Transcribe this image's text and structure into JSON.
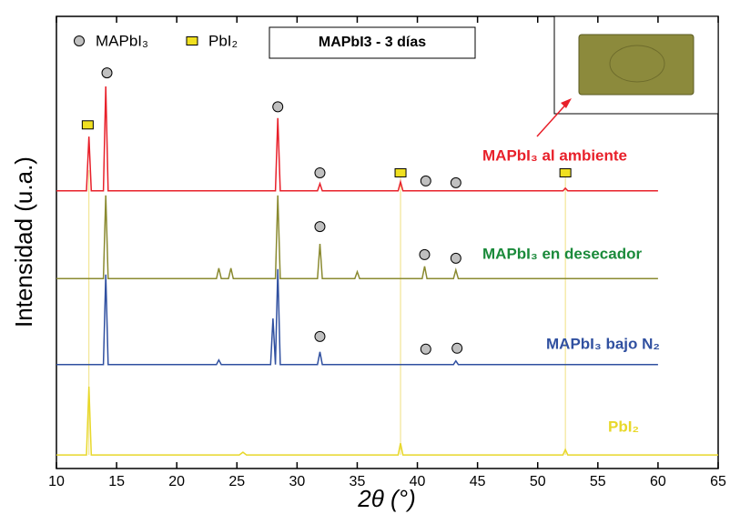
{
  "chart_data": {
    "type": "line",
    "title": "MAPbI3 -  3 días",
    "xlabel": "2θ (°)",
    "ylabel": "Intensidad (u.a.)",
    "xlim": [
      10,
      65
    ],
    "xticks": [
      10,
      15,
      20,
      25,
      30,
      35,
      40,
      45,
      50,
      55,
      60,
      65
    ],
    "ylim": [
      0,
      100
    ],
    "legend": [
      {
        "name": "MAPbI₃",
        "shape": "circle",
        "color": "#c0c0c0"
      },
      {
        "name": "PbI₂",
        "shape": "square",
        "color": "#f0e020"
      }
    ],
    "series": [
      {
        "name": "MAPbI₃ al ambiente",
        "color": "#e8202a",
        "label_color": "#e8202a",
        "x": [
          10,
          12.5,
          12.7,
          12.9,
          13.9,
          14.1,
          14.3,
          28.2,
          28.4,
          28.6,
          31.7,
          31.9,
          32.1,
          38.4,
          38.6,
          38.8,
          52.1,
          52.3,
          52.5,
          60
        ],
        "values": [
          61.4,
          61.4,
          73.4,
          61.4,
          61.4,
          84.5,
          61.4,
          61.4,
          77.5,
          61.4,
          61.4,
          63,
          61.4,
          61.4,
          63.4,
          61.4,
          61.4,
          62,
          61.4,
          61.4
        ]
      },
      {
        "name": "MAPbI₃ en desecador",
        "color": "#8a8a30",
        "label_color": "#1a8a3a",
        "x": [
          10,
          13.9,
          14.1,
          14.3,
          23.3,
          23.5,
          23.7,
          24.3,
          24.5,
          24.7,
          28.2,
          28.4,
          28.6,
          31.7,
          31.9,
          32.1,
          34.8,
          35,
          35.2,
          40.4,
          40.6,
          40.8,
          43,
          43.2,
          43.4,
          60
        ],
        "values": [
          42,
          42,
          60.4,
          42,
          42,
          44.3,
          42,
          42,
          44.3,
          42,
          42,
          60.4,
          42,
          42,
          49.7,
          42,
          42,
          43.5,
          42,
          42,
          44.7,
          42,
          42,
          43.9,
          42,
          42
        ]
      },
      {
        "name": "MAPbI₃ bajo N₂",
        "color": "#3050a0",
        "label_color": "#3050a0",
        "x": [
          10,
          13.9,
          14.1,
          14.3,
          23.3,
          23.5,
          23.7,
          27.8,
          28,
          28.2,
          28.4,
          28.6,
          31.7,
          31.9,
          32.1,
          43,
          43.2,
          43.4,
          60
        ],
        "values": [
          23,
          23,
          42.9,
          23,
          23,
          24,
          23,
          23,
          33.2,
          23,
          44.1,
          23,
          23,
          25.8,
          23,
          23,
          23.8,
          23,
          23
        ]
      },
      {
        "name": "PbI₂",
        "color": "#e8d82a",
        "label_color": "#e8d82a",
        "x": [
          10,
          12.5,
          12.7,
          12.9,
          25.2,
          25.5,
          25.8,
          38.4,
          38.6,
          38.8,
          52.1,
          52.3,
          52.5,
          65
        ],
        "values": [
          3,
          3,
          18.1,
          3,
          3,
          3.6,
          3,
          3,
          5.6,
          3,
          3,
          4.2,
          3,
          3
        ]
      }
    ],
    "vlines": [
      12.7,
      38.6,
      52.3
    ],
    "vline_color": "#f0e080",
    "peak_markers": [
      {
        "x": 12.6,
        "y": 76,
        "shape": "square"
      },
      {
        "x": 14.2,
        "y": 87.5,
        "shape": "circle"
      },
      {
        "x": 28.4,
        "y": 80,
        "shape": "circle"
      },
      {
        "x": 31.9,
        "y": 65.4,
        "shape": "circle"
      },
      {
        "x": 38.6,
        "y": 65.4,
        "shape": "square"
      },
      {
        "x": 40.7,
        "y": 63.6,
        "shape": "circle"
      },
      {
        "x": 43.2,
        "y": 63.2,
        "shape": "circle"
      },
      {
        "x": 52.3,
        "y": 65.4,
        "shape": "square"
      },
      {
        "x": 31.9,
        "y": 53.5,
        "shape": "circle"
      },
      {
        "x": 40.6,
        "y": 47.3,
        "shape": "circle"
      },
      {
        "x": 43.2,
        "y": 46.5,
        "shape": "circle"
      },
      {
        "x": 31.9,
        "y": 29.2,
        "shape": "circle"
      },
      {
        "x": 40.7,
        "y": 26.4,
        "shape": "circle"
      },
      {
        "x": 43.3,
        "y": 26.6,
        "shape": "circle"
      }
    ]
  }
}
